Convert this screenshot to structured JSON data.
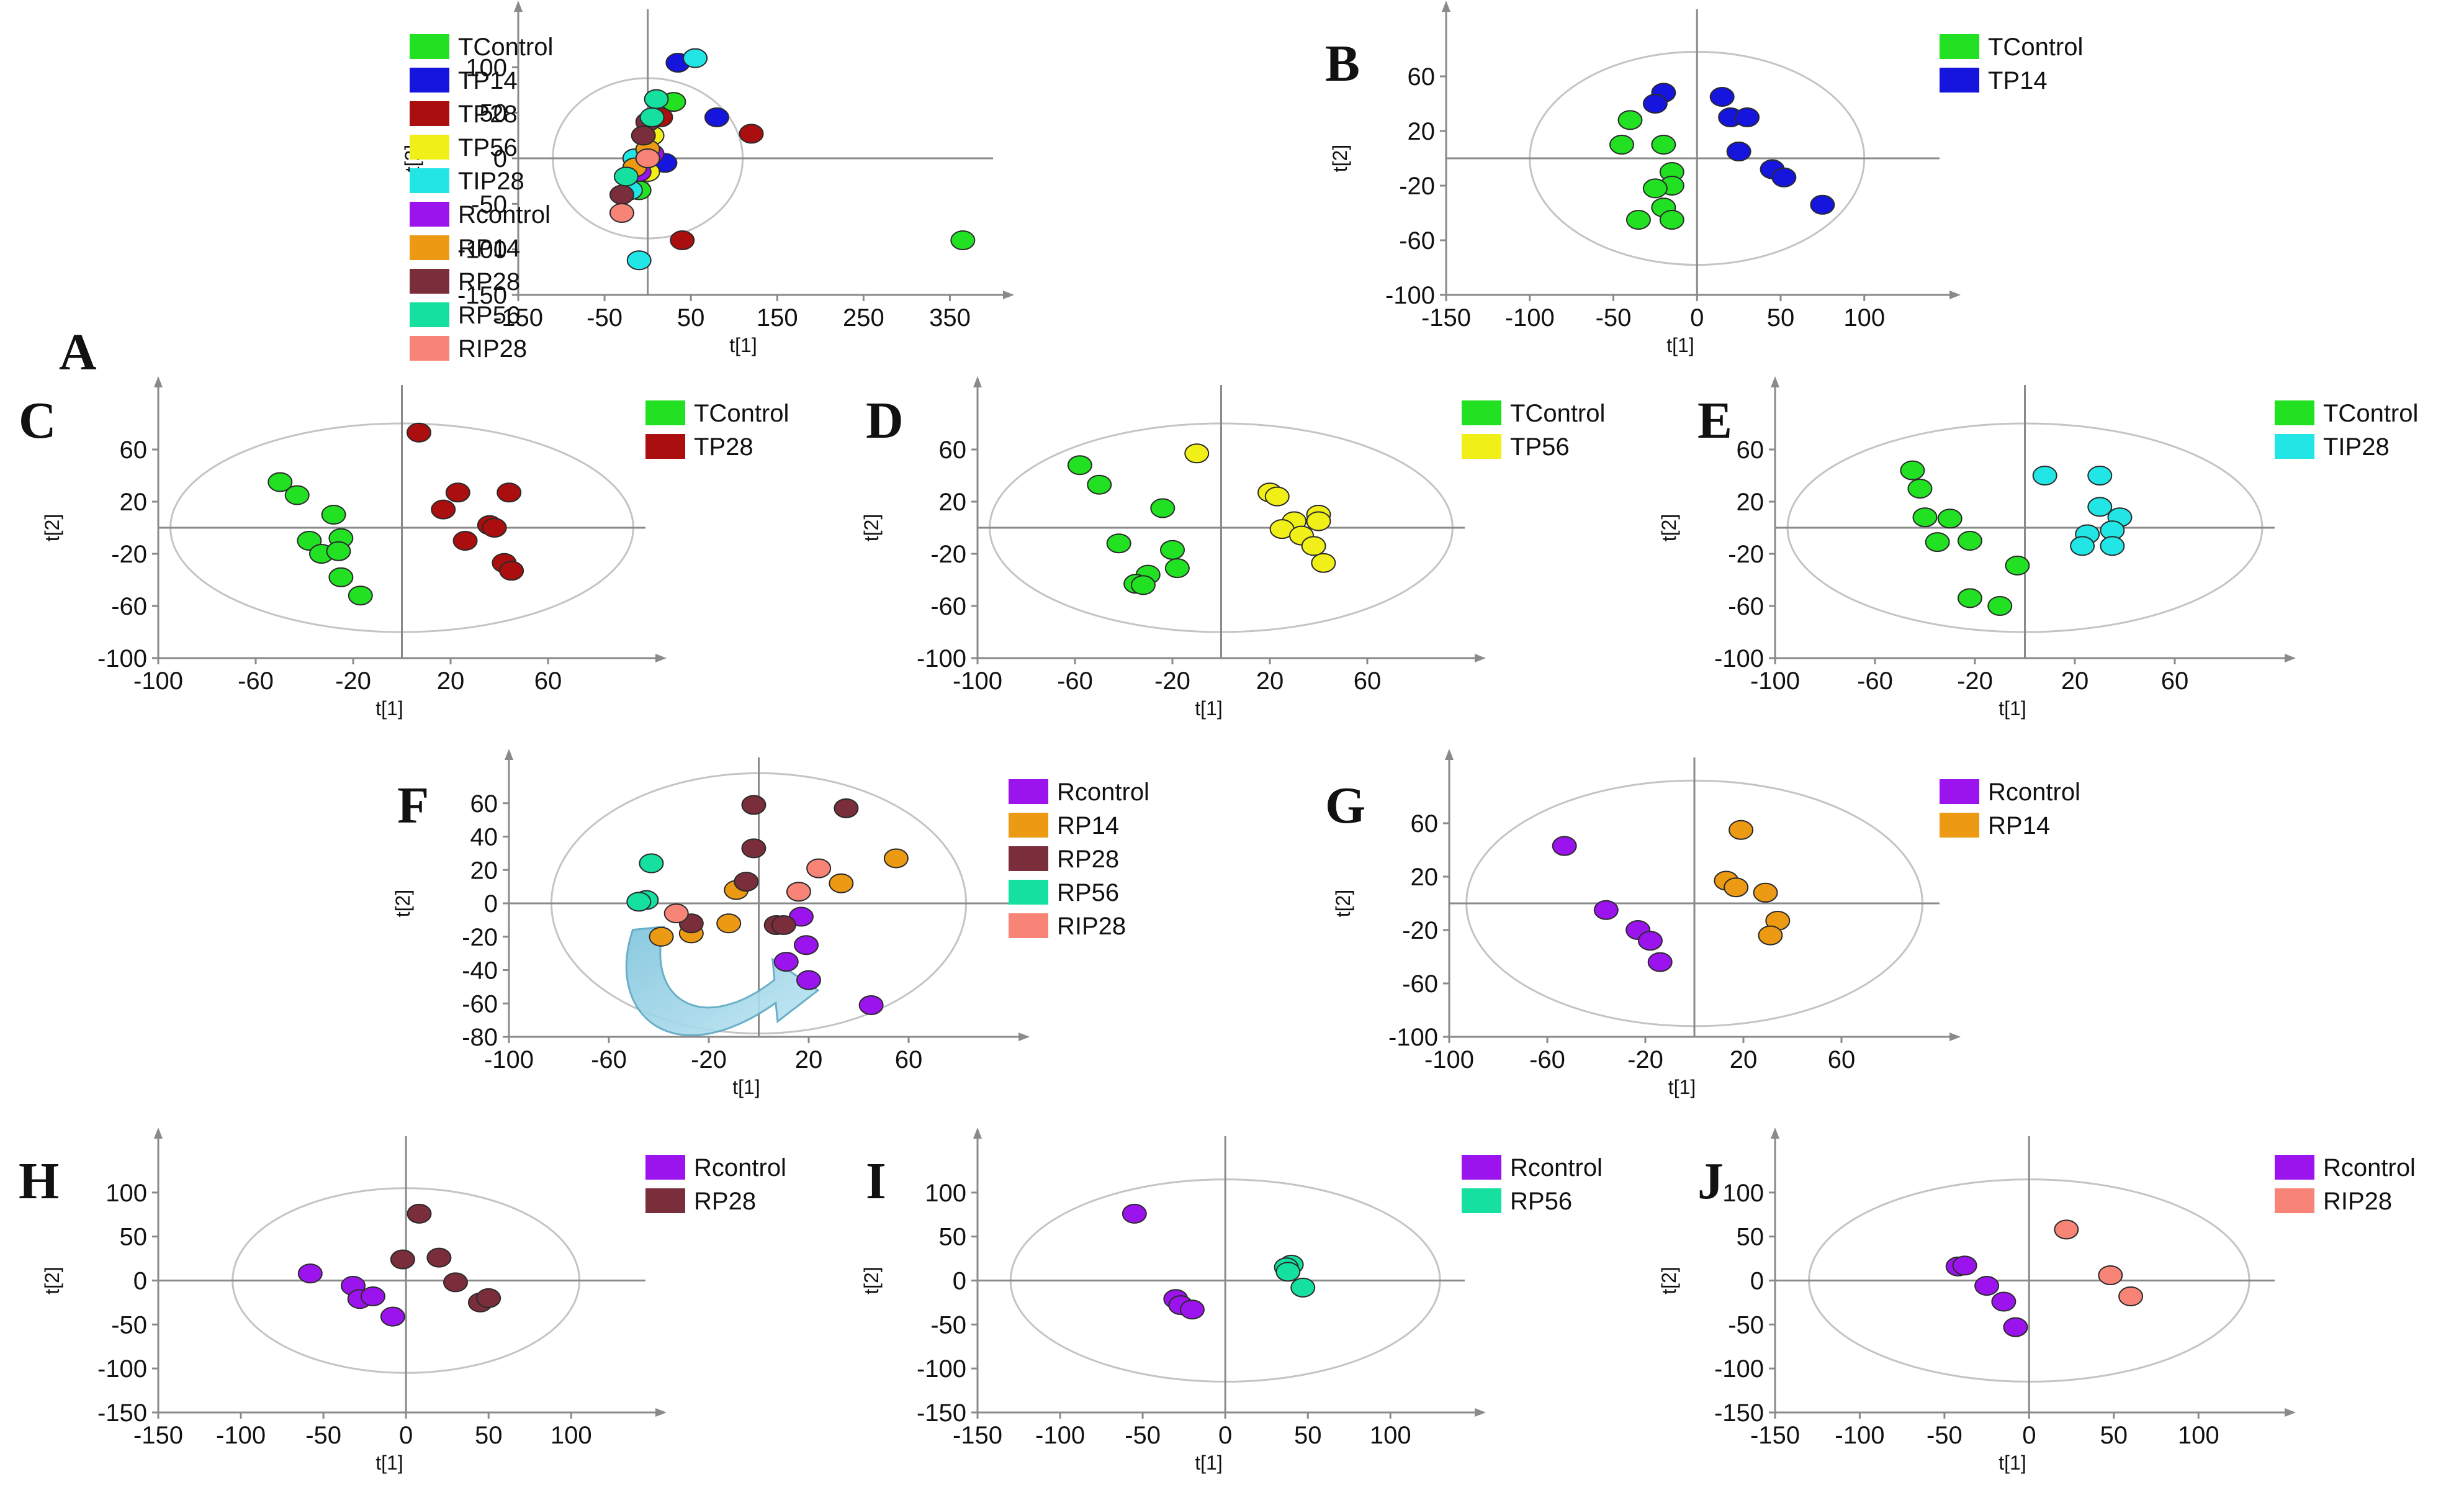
{
  "chart_data": [
    {
      "panel": "A",
      "type": "scatter",
      "xlabel": "t[1]",
      "ylabel": "t[2]",
      "xlim": [
        -150,
        400
      ],
      "ylim": [
        -150,
        150
      ],
      "ellipse": {
        "rx": 110,
        "ry": 88
      },
      "xticks": [
        "-150",
        "-50",
        "50",
        "150",
        "250",
        "350"
      ],
      "yticks": [
        "100",
        "50",
        "0",
        "-50",
        "-100",
        "-150"
      ],
      "series": [
        {
          "name": "TControl",
          "color": "#22e022",
          "points": [
            [
              365,
              -90
            ],
            [
              30,
              62
            ],
            [
              -10,
              -35
            ]
          ]
        },
        {
          "name": "TP14",
          "color": "#1515dd",
          "points": [
            [
              35,
              105
            ],
            [
              80,
              45
            ],
            [
              20,
              -5
            ]
          ]
        },
        {
          "name": "TP28",
          "color": "#aa0e0e",
          "points": [
            [
              120,
              27
            ],
            [
              40,
              -90
            ],
            [
              15,
              45
            ]
          ]
        },
        {
          "name": "TP56",
          "color": "#f0f018",
          "points": [
            [
              5,
              25
            ],
            [
              0,
              -15
            ]
          ]
        },
        {
          "name": "TIP28",
          "color": "#22e5e5",
          "points": [
            [
              55,
              110
            ],
            [
              -10,
              -112
            ],
            [
              -20,
              -35
            ],
            [
              -15,
              0
            ]
          ]
        },
        {
          "name": "Rcontrol",
          "color": "#9b14ee",
          "points": [
            [
              -10,
              -15
            ],
            [
              5,
              5
            ]
          ]
        },
        {
          "name": "RP14",
          "color": "#ec9a14",
          "points": [
            [
              0,
              10
            ],
            [
              -15,
              -10
            ]
          ]
        },
        {
          "name": "RP28",
          "color": "#7a2e3c",
          "points": [
            [
              0,
              40
            ],
            [
              -30,
              -40
            ],
            [
              -5,
              25
            ]
          ]
        },
        {
          "name": "RP56",
          "color": "#16e0a0",
          "points": [
            [
              10,
              65
            ],
            [
              -25,
              -20
            ],
            [
              5,
              45
            ]
          ]
        },
        {
          "name": "RIP28",
          "color": "#f88478",
          "points": [
            [
              -30,
              -60
            ],
            [
              0,
              0
            ]
          ]
        }
      ]
    },
    {
      "panel": "B",
      "type": "scatter",
      "xlabel": "t[1]",
      "ylabel": "t[2]",
      "xlim": [
        -150,
        145
      ],
      "ylim": [
        -100,
        100
      ],
      "ellipse": {
        "rx": 100,
        "ry": 78
      },
      "xticks": [
        "-150",
        "-100",
        "-50",
        "0",
        "50",
        "100"
      ],
      "yticks": [
        "60",
        "20",
        "-20",
        "-60",
        "-100"
      ],
      "series": [
        {
          "name": "TControl",
          "color": "#22e022",
          "points": [
            [
              -40,
              28
            ],
            [
              -45,
              10
            ],
            [
              -20,
              10
            ],
            [
              -15,
              -10
            ],
            [
              -15,
              -20
            ],
            [
              -25,
              -22
            ],
            [
              -20,
              -36
            ],
            [
              -35,
              -45
            ],
            [
              -15,
              -45
            ]
          ]
        },
        {
          "name": "TP14",
          "color": "#1515dd",
          "points": [
            [
              -20,
              48
            ],
            [
              -25,
              40
            ],
            [
              15,
              45
            ],
            [
              20,
              30
            ],
            [
              30,
              30
            ],
            [
              25,
              5
            ],
            [
              45,
              -8
            ],
            [
              52,
              -14
            ],
            [
              75,
              -34
            ]
          ]
        }
      ]
    },
    {
      "panel": "C",
      "type": "scatter",
      "xlabel": "t[1]",
      "ylabel": "t[2]",
      "xlim": [
        -100,
        100
      ],
      "ylim": [
        -100,
        100
      ],
      "ellipse": {
        "rx": 95,
        "ry": 80
      },
      "xticks": [
        "-100",
        "-60",
        "-20",
        "20",
        "60"
      ],
      "yticks": [
        "60",
        "20",
        "-20",
        "-60",
        "-100"
      ],
      "series": [
        {
          "name": "TControl",
          "color": "#22e022",
          "points": [
            [
              -50,
              35
            ],
            [
              -43,
              25
            ],
            [
              -28,
              10
            ],
            [
              -38,
              -10
            ],
            [
              -33,
              -20
            ],
            [
              -25,
              -8
            ],
            [
              -26,
              -18
            ],
            [
              -25,
              -38
            ],
            [
              -17,
              -52
            ]
          ]
        },
        {
          "name": "TP28",
          "color": "#aa0e0e",
          "points": [
            [
              7,
              73
            ],
            [
              23,
              27
            ],
            [
              17,
              14
            ],
            [
              36,
              2
            ],
            [
              38,
              0
            ],
            [
              44,
              27
            ],
            [
              26,
              -10
            ],
            [
              42,
              -27
            ],
            [
              45,
              -33
            ]
          ]
        }
      ]
    },
    {
      "panel": "D",
      "type": "scatter",
      "xlabel": "t[1]",
      "ylabel": "t[2]",
      "xlim": [
        -100,
        100
      ],
      "ylim": [
        -100,
        100
      ],
      "ellipse": {
        "rx": 95,
        "ry": 80
      },
      "xticks": [
        "-100",
        "-60",
        "-20",
        "20",
        "60"
      ],
      "yticks": [
        "60",
        "20",
        "-20",
        "-60",
        "-100"
      ],
      "series": [
        {
          "name": "TControl",
          "color": "#22e022",
          "points": [
            [
              -58,
              48
            ],
            [
              -50,
              33
            ],
            [
              -24,
              15
            ],
            [
              -42,
              -12
            ],
            [
              -30,
              -36
            ],
            [
              -35,
              -43
            ],
            [
              -32,
              -44
            ],
            [
              -20,
              -17
            ],
            [
              -18,
              -31
            ]
          ]
        },
        {
          "name": "TP56",
          "color": "#f0f018",
          "points": [
            [
              -10,
              57
            ],
            [
              20,
              27
            ],
            [
              23,
              24
            ],
            [
              30,
              5
            ],
            [
              40,
              10
            ],
            [
              40,
              5
            ],
            [
              25,
              -1
            ],
            [
              33,
              -6
            ],
            [
              38,
              -14
            ],
            [
              42,
              -27
            ]
          ]
        }
      ]
    },
    {
      "panel": "E",
      "type": "scatter",
      "xlabel": "t[1]",
      "ylabel": "t[2]",
      "xlim": [
        -100,
        100
      ],
      "ylim": [
        -100,
        100
      ],
      "ellipse": {
        "rx": 95,
        "ry": 80
      },
      "xticks": [
        "-100",
        "-60",
        "-20",
        "20",
        "60"
      ],
      "yticks": [
        "60",
        "20",
        "-20",
        "-60",
        "-100"
      ],
      "series": [
        {
          "name": "TControl",
          "color": "#22e022",
          "points": [
            [
              -45,
              44
            ],
            [
              -42,
              30
            ],
            [
              -40,
              8
            ],
            [
              -30,
              7
            ],
            [
              -35,
              -11
            ],
            [
              -22,
              -10
            ],
            [
              -22,
              -54
            ],
            [
              -10,
              -60
            ],
            [
              -3,
              -29
            ]
          ]
        },
        {
          "name": "TIP28",
          "color": "#22e5e5",
          "points": [
            [
              8,
              40
            ],
            [
              30,
              40
            ],
            [
              30,
              16
            ],
            [
              38,
              8
            ],
            [
              35,
              -2
            ],
            [
              25,
              -5
            ],
            [
              23,
              -14
            ],
            [
              35,
              -14
            ]
          ]
        }
      ]
    },
    {
      "panel": "F",
      "type": "scatter",
      "xlabel": "t[1]",
      "ylabel": "t[2]",
      "xlim": [
        -100,
        100
      ],
      "ylim": [
        -80,
        80
      ],
      "ellipse": {
        "rx": 83,
        "ry": 78
      },
      "xticks": [
        "-100",
        "-60",
        "-20",
        "20",
        "60"
      ],
      "yticks": [
        "60",
        "40",
        "20",
        "0",
        "-20",
        "-40",
        "-60",
        "-80"
      ],
      "annotation": "curved arrow from RP56 cluster toward Rcontrol cluster",
      "series": [
        {
          "name": "Rcontrol",
          "color": "#9b14ee",
          "points": [
            [
              17,
              -8
            ],
            [
              19,
              -25
            ],
            [
              11,
              -35
            ],
            [
              20,
              -46
            ],
            [
              45,
              -61
            ]
          ]
        },
        {
          "name": "RP14",
          "color": "#ec9a14",
          "points": [
            [
              55,
              27
            ],
            [
              33,
              12
            ],
            [
              -9,
              8
            ],
            [
              -12,
              -12
            ],
            [
              -27,
              -18
            ],
            [
              -39,
              -20
            ]
          ]
        },
        {
          "name": "RP28",
          "color": "#7a2e3c",
          "points": [
            [
              -2,
              59
            ],
            [
              35,
              57
            ],
            [
              -2,
              33
            ],
            [
              -5,
              13
            ],
            [
              -27,
              -12
            ],
            [
              7,
              -13
            ],
            [
              10,
              -13
            ]
          ]
        },
        {
          "name": "RP56",
          "color": "#16e0a0",
          "points": [
            [
              -43,
              24
            ],
            [
              -45,
              2
            ],
            [
              -48,
              1
            ]
          ]
        },
        {
          "name": "RIP28",
          "color": "#f88478",
          "points": [
            [
              24,
              21
            ],
            [
              16,
              7
            ],
            [
              -33,
              -6
            ]
          ]
        }
      ]
    },
    {
      "panel": "G",
      "type": "scatter",
      "xlabel": "t[1]",
      "ylabel": "t[2]",
      "xlim": [
        -100,
        100
      ],
      "ylim": [
        -100,
        100
      ],
      "ellipse": {
        "rx": 93,
        "ry": 92
      },
      "xticks": [
        "-100",
        "-60",
        "-20",
        "20",
        "60"
      ],
      "yticks": [
        "60",
        "20",
        "-20",
        "-60",
        "-100"
      ],
      "series": [
        {
          "name": "Rcontrol",
          "color": "#9b14ee",
          "points": [
            [
              -53,
              43
            ],
            [
              -36,
              -5
            ],
            [
              -23,
              -20
            ],
            [
              -18,
              -28
            ],
            [
              -14,
              -44
            ]
          ]
        },
        {
          "name": "RP14",
          "color": "#ec9a14",
          "points": [
            [
              19,
              55
            ],
            [
              13,
              17
            ],
            [
              17,
              12
            ],
            [
              29,
              8
            ],
            [
              34,
              -13
            ],
            [
              31,
              -24
            ]
          ]
        }
      ]
    },
    {
      "panel": "H",
      "type": "scatter",
      "xlabel": "t[1]",
      "ylabel": "t[2]",
      "xlim": [
        -150,
        145
      ],
      "ylim": [
        -150,
        150
      ],
      "ellipse": {
        "rx": 105,
        "ry": 105
      },
      "xticks": [
        "-150",
        "-100",
        "-50",
        "0",
        "50",
        "100"
      ],
      "yticks": [
        "100",
        "50",
        "0",
        "-50",
        "-100",
        "-150"
      ],
      "series": [
        {
          "name": "Rcontrol",
          "color": "#9b14ee",
          "points": [
            [
              -58,
              8
            ],
            [
              -32,
              -6
            ],
            [
              -28,
              -21
            ],
            [
              -20,
              -18
            ],
            [
              -8,
              -41
            ]
          ]
        },
        {
          "name": "RP28",
          "color": "#7a2e3c",
          "points": [
            [
              8,
              76
            ],
            [
              -2,
              24
            ],
            [
              20,
              26
            ],
            [
              30,
              -2
            ],
            [
              45,
              -25
            ],
            [
              50,
              -20
            ]
          ]
        }
      ]
    },
    {
      "panel": "I",
      "type": "scatter",
      "xlabel": "t[1]",
      "ylabel": "t[2]",
      "xlim": [
        -150,
        145
      ],
      "ylim": [
        -150,
        150
      ],
      "ellipse": {
        "rx": 130,
        "ry": 115
      },
      "xticks": [
        "-150",
        "-100",
        "-50",
        "0",
        "50",
        "100"
      ],
      "yticks": [
        "100",
        "50",
        "0",
        "-50",
        "-100",
        "-150"
      ],
      "series": [
        {
          "name": "Rcontrol",
          "color": "#9b14ee",
          "points": [
            [
              -55,
              76
            ],
            [
              -30,
              -21
            ],
            [
              -27,
              -28
            ],
            [
              -20,
              -33
            ]
          ]
        },
        {
          "name": "RP56",
          "color": "#16e0a0",
          "points": [
            [
              40,
              18
            ],
            [
              37,
              15
            ],
            [
              38,
              10
            ],
            [
              47,
              -8
            ]
          ]
        }
      ]
    },
    {
      "panel": "J",
      "type": "scatter",
      "xlabel": "t[1]",
      "ylabel": "t[2]",
      "xlim": [
        -150,
        145
      ],
      "ylim": [
        -150,
        150
      ],
      "ellipse": {
        "rx": 130,
        "ry": 115
      },
      "xticks": [
        "-150",
        "-100",
        "-50",
        "0",
        "50",
        "100"
      ],
      "yticks": [
        "100",
        "50",
        "0",
        "-50",
        "-100",
        "-150"
      ],
      "series": [
        {
          "name": "Rcontrol",
          "color": "#9b14ee",
          "points": [
            [
              -42,
              16
            ],
            [
              -38,
              17
            ],
            [
              -25,
              -6
            ],
            [
              -15,
              -24
            ],
            [
              -8,
              -53
            ]
          ]
        },
        {
          "name": "RIP28",
          "color": "#f88478",
          "points": [
            [
              22,
              58
            ],
            [
              48,
              6
            ],
            [
              60,
              -18
            ]
          ]
        }
      ]
    }
  ]
}
